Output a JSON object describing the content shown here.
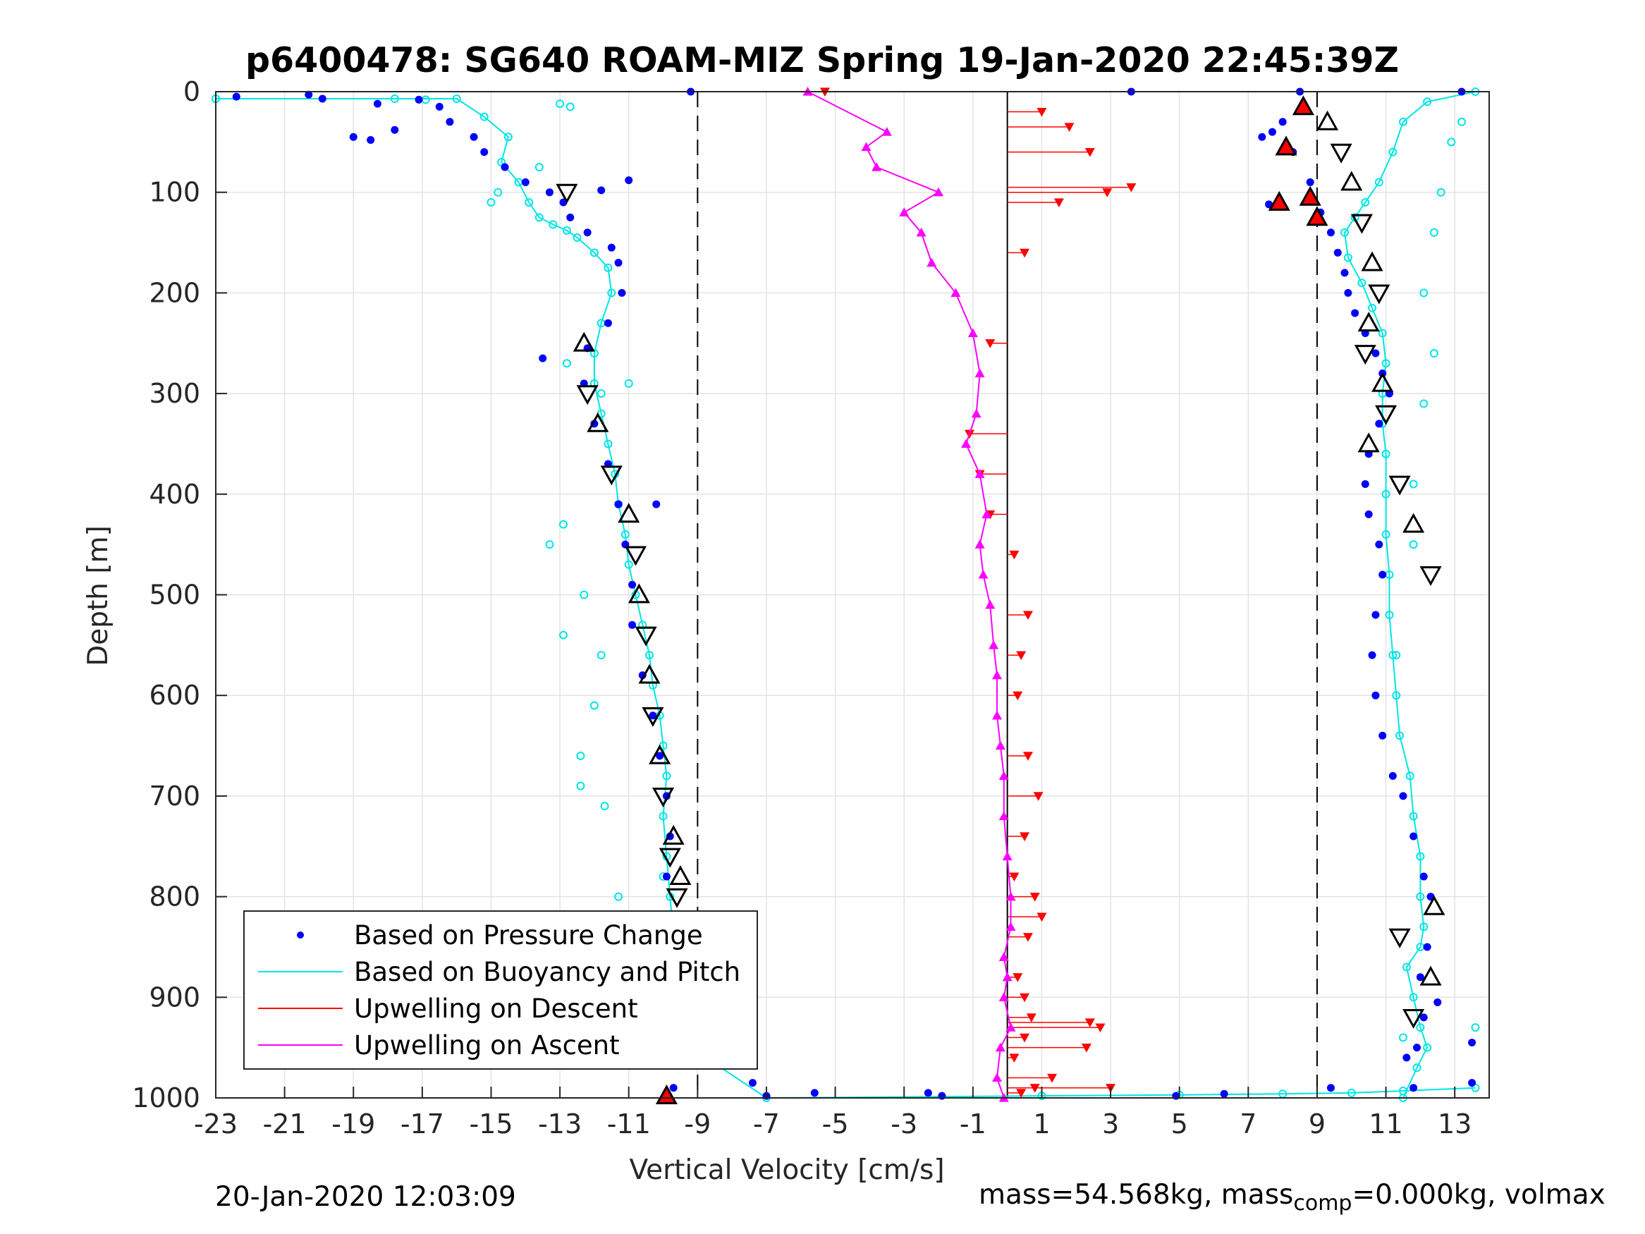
{
  "chart_data": {
    "type": "scatter",
    "title": "p6400478: SG640 ROAM-MIZ Spring 19-Jan-2020 22:45:39Z",
    "xlabel": "Vertical Velocity [cm/s]",
    "ylabel": "Depth [m]",
    "xlim": [
      -23,
      14
    ],
    "ylim": [
      0,
      1000
    ],
    "y_reversed": true,
    "grid": true,
    "xticks": [
      -23,
      -21,
      -19,
      -17,
      -15,
      -13,
      -11,
      -9,
      -7,
      -5,
      -3,
      -1,
      1,
      3,
      5,
      7,
      9,
      11,
      13
    ],
    "yticks": [
      0,
      100,
      200,
      300,
      400,
      500,
      600,
      700,
      800,
      900,
      1000
    ],
    "reference_lines_x": [
      -9,
      0,
      9
    ],
    "legend_position": "bottom-left",
    "series": [
      {
        "name": "Based on Pressure Change",
        "color": "#0000ff",
        "segments": [
          {
            "x": [
              -16.5,
              -16.2,
              -15.5,
              -15.2,
              -14.6,
              -14.0,
              -13.3,
              -12.9,
              -12.7,
              -12.2,
              -11.5,
              -11.3,
              -11.2,
              -11.6,
              -12.2,
              -12.3,
              -12.0,
              -11.6,
              -11.3,
              -11.1,
              -10.9,
              -10.9,
              -10.6,
              -10.3,
              -10.1,
              -9.9,
              -9.8,
              -9.9,
              -10.0,
              -9.8,
              -9.9,
              -9.8,
              -9.7
            ],
            "y": [
              15,
              30,
              45,
              60,
              75,
              90,
              100,
              110,
              125,
              140,
              155,
              170,
              200,
              230,
              255,
              290,
              330,
              370,
              410,
              450,
              490,
              530,
              580,
              620,
              660,
              700,
              740,
              780,
              830,
              870,
              910,
              950,
              990
            ]
          },
          {
            "x": [
              8.0,
              8.3,
              8.8,
              9.1,
              9.4,
              9.6,
              9.8,
              9.9,
              10.1,
              10.4,
              10.7,
              10.9,
              11.1,
              10.8,
              10.5,
              10.4,
              10.5,
              10.8,
              10.9,
              10.7,
              10.6,
              10.7,
              10.9,
              11.2,
              11.5,
              11.8,
              12.1,
              12.3,
              12.2,
              12.0,
              12.1,
              11.9,
              11.8
            ],
            "y": [
              30,
              60,
              90,
              120,
              140,
              160,
              180,
              200,
              220,
              240,
              260,
              280,
              300,
              330,
              360,
              390,
              420,
              450,
              480,
              520,
              560,
              600,
              640,
              680,
              700,
              740,
              780,
              800,
              850,
              880,
              920,
              950,
              990
            ]
          }
        ],
        "outliers": [
          [
            -22.4,
            5
          ],
          [
            -20.3,
            3
          ],
          [
            -19.9,
            7
          ],
          [
            -18.3,
            12
          ],
          [
            -17.1,
            8
          ],
          [
            -19.0,
            45
          ],
          [
            -18.5,
            48
          ],
          [
            -17.8,
            38
          ],
          [
            -11.0,
            88
          ],
          [
            -11.8,
            98
          ],
          [
            -13.5,
            265
          ],
          [
            -10.2,
            410
          ],
          [
            -8.7,
            925
          ],
          [
            -8.1,
            955
          ],
          [
            -7.4,
            985
          ],
          [
            -7.0,
            998
          ],
          [
            -5.6,
            995
          ],
          [
            -2.3,
            995
          ],
          [
            -1.9,
            998
          ],
          [
            4.9,
            998
          ],
          [
            6.3,
            996
          ],
          [
            7.4,
            45
          ],
          [
            7.7,
            40
          ],
          [
            7.6,
            112
          ],
          [
            9.4,
            990
          ],
          [
            11.6,
            960
          ],
          [
            12.5,
            905
          ],
          [
            13.5,
            945
          ],
          [
            13.5,
            985
          ],
          [
            -9.2,
            0
          ],
          [
            3.6,
            0
          ],
          [
            8.5,
            0
          ],
          [
            13.2,
            0
          ]
        ]
      },
      {
        "name": "Based on Buoyancy and Pitch",
        "color": "#00e6e6",
        "segments": [
          {
            "x": [
              -23.0,
              -16.0,
              -15.2,
              -14.5,
              -14.7,
              -14.2,
              -13.9,
              -13.6,
              -13.2,
              -12.8,
              -12.5,
              -12.0,
              -11.6,
              -11.5,
              -11.8,
              -12.0,
              -12.0,
              -11.8,
              -11.6,
              -11.4,
              -11.3,
              -11.1,
              -11.0,
              -10.8,
              -10.6,
              -10.4,
              -10.3,
              -10.1,
              -10.0,
              -9.9,
              -10.0,
              -9.9,
              -9.8,
              -9.7,
              -9.6,
              -9.2,
              -7.0,
              1.0,
              5.0,
              8.0,
              10.0,
              11.5,
              13.6
            ],
            "y": [
              7,
              7,
              25,
              45,
              70,
              90,
              110,
              125,
              132,
              138,
              145,
              160,
              175,
              200,
              230,
              260,
              290,
              320,
              350,
              380,
              410,
              440,
              470,
              500,
              530,
              560,
              590,
              620,
              650,
              680,
              720,
              760,
              800,
              840,
              880,
              950,
              1000,
              998,
              997,
              996,
              995,
              993,
              990
            ]
          },
          {
            "x": [
              13.6,
              12.2,
              11.5,
              11.2,
              10.8,
              10.4,
              10.1,
              9.8,
              9.9,
              10.3,
              10.6,
              10.9,
              11.0,
              10.9,
              10.9,
              11.0,
              11.0,
              11.0,
              11.1,
              11.1,
              11.2,
              11.3,
              11.4,
              11.7,
              11.8,
              12.0,
              12.0,
              12.1,
              12.0,
              11.6,
              11.8,
              12.0,
              12.2,
              11.9,
              11.5
            ],
            "y": [
              0,
              10,
              30,
              60,
              90,
              110,
              125,
              140,
              165,
              190,
              215,
              240,
              270,
              300,
              330,
              360,
              400,
              440,
              480,
              520,
              560,
              600,
              640,
              680,
              720,
              760,
              800,
              830,
              850,
              870,
              900,
              930,
              950,
              970,
              1000
            ]
          }
        ],
        "outliers": [
          [
            -16.9,
            8
          ],
          [
            -17.8,
            7
          ],
          [
            -15.0,
            110
          ],
          [
            -14.8,
            100
          ],
          [
            -13.0,
            12
          ],
          [
            -12.7,
            15
          ],
          [
            -13.6,
            75
          ],
          [
            -12.8,
            270
          ],
          [
            -11.8,
            300
          ],
          [
            -11.0,
            290
          ],
          [
            -12.9,
            430
          ],
          [
            -13.3,
            450
          ],
          [
            -12.9,
            540
          ],
          [
            -12.3,
            500
          ],
          [
            -11.8,
            560
          ],
          [
            -12.0,
            610
          ],
          [
            -12.4,
            660
          ],
          [
            -12.4,
            690
          ],
          [
            -11.7,
            710
          ],
          [
            -11.3,
            800
          ],
          [
            -10.0,
            780
          ],
          [
            13.2,
            30
          ],
          [
            12.9,
            50
          ],
          [
            12.6,
            100
          ],
          [
            12.4,
            140
          ],
          [
            12.1,
            200
          ],
          [
            12.4,
            260
          ],
          [
            12.1,
            310
          ],
          [
            11.8,
            390
          ],
          [
            11.8,
            450
          ],
          [
            11.3,
            560
          ],
          [
            13.6,
            930
          ],
          [
            11.5,
            940
          ]
        ]
      },
      {
        "name": "Upwelling on Descent",
        "color": "#ff0000",
        "marker": "triangle-down",
        "x": [
          -5.3,
          1.0,
          1.8,
          2.4,
          3.6,
          2.9,
          1.5,
          0.5,
          -0.5,
          -1.1,
          -0.8,
          -0.5,
          0.2,
          0.6,
          0.4,
          0.3,
          0.6,
          0.9,
          0.5,
          0.2,
          0.8,
          1.0,
          0.6,
          0.3,
          0.5,
          0.7,
          0.5,
          0.2,
          1.3,
          0.8,
          0.4,
          2.4,
          2.7,
          2.3,
          3.0
        ],
        "y": [
          0,
          20,
          35,
          60,
          95,
          100,
          110,
          160,
          250,
          340,
          380,
          420,
          460,
          520,
          560,
          600,
          660,
          700,
          740,
          780,
          800,
          820,
          840,
          880,
          900,
          920,
          940,
          960,
          980,
          990,
          995,
          925,
          930,
          950,
          990
        ]
      },
      {
        "name": "Upwelling on Ascent",
        "color": "#ff00ff",
        "marker": "triangle-up",
        "x": [
          -5.8,
          -3.5,
          -4.1,
          -3.8,
          -2.0,
          -3.0,
          -2.5,
          -2.2,
          -1.5,
          -1.0,
          -0.8,
          -0.9,
          -1.2,
          -0.8,
          -0.6,
          -0.8,
          -0.7,
          -0.5,
          -0.4,
          -0.3,
          -0.3,
          -0.2,
          -0.1,
          -0.1,
          0.0,
          0.1,
          0.1,
          -0.1,
          0.0,
          -0.1,
          0.1,
          -0.2,
          -0.3,
          -0.1
        ],
        "y": [
          0,
          40,
          55,
          75,
          100,
          120,
          140,
          170,
          200,
          240,
          280,
          320,
          350,
          380,
          420,
          450,
          480,
          510,
          550,
          580,
          620,
          650,
          680,
          720,
          760,
          800,
          830,
          860,
          880,
          900,
          930,
          950,
          980,
          1000
        ]
      }
    ],
    "markers": [
      {
        "name": "triangle-markers",
        "color": "#000000",
        "x": [
          -12.8,
          -12.3,
          -12.2,
          -11.9,
          -11.5,
          -11.0,
          -10.8,
          -10.7,
          -10.5,
          -10.4,
          -10.3,
          -10.1,
          -10.0,
          -9.7,
          -9.8,
          -9.5,
          -9.6,
          -9.4,
          -9.8,
          -9.3,
          -9.8,
          9.3,
          9.7,
          10.0,
          10.3,
          10.6,
          10.8,
          10.5,
          10.4,
          10.9,
          11.0,
          10.5,
          11.4,
          11.8,
          12.3,
          12.4,
          11.4,
          12.3,
          11.8
        ],
        "y": [
          100,
          250,
          300,
          330,
          380,
          420,
          460,
          500,
          540,
          580,
          620,
          660,
          700,
          740,
          760,
          780,
          800,
          850,
          880,
          920,
          950,
          30,
          60,
          90,
          130,
          170,
          200,
          230,
          260,
          290,
          320,
          350,
          390,
          430,
          480,
          810,
          840,
          880,
          920
        ]
      },
      {
        "name": "red-triangle-markers",
        "color": "#ff0000",
        "x": [
          8.6,
          8.1,
          8.8,
          7.9,
          9.0,
          -9.9
        ],
        "y": [
          15,
          55,
          105,
          110,
          125,
          998
        ]
      }
    ]
  },
  "footer": {
    "date": "20-Jan-2020 12:03:09",
    "mass_prefix": "mass=54.568kg, mass",
    "mass_sub": "comp",
    "mass_suffix": "=0.000kg, volmax"
  }
}
